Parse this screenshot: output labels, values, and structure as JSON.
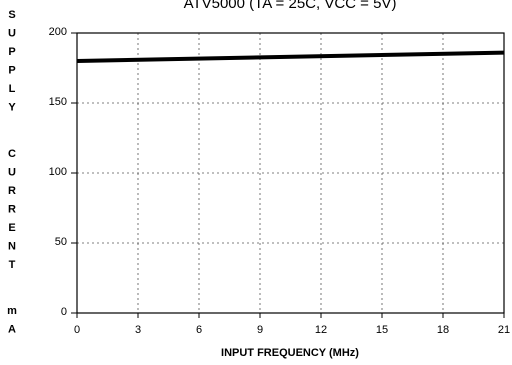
{
  "chart_data": {
    "type": "line",
    "title": "ATV5000 (TA = 25C, VCC = 5V)",
    "xlabel": "INPUT FREQUENCY (MHz)",
    "ylabel": "SUPPLY CURRENT mA",
    "xlim": [
      0,
      21
    ],
    "ylim": [
      0,
      200
    ],
    "x_ticks": [
      0,
      3,
      6,
      9,
      12,
      15,
      18,
      21
    ],
    "y_ticks": [
      0,
      50,
      100,
      150,
      200
    ],
    "grid": true,
    "series": [
      {
        "x": [
          0,
          21
        ],
        "values": [
          180,
          186
        ]
      }
    ]
  }
}
